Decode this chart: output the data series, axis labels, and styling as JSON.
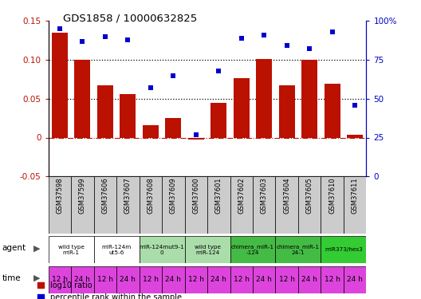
{
  "title": "GDS1858 / 10000632825",
  "samples": [
    "GSM37598",
    "GSM37599",
    "GSM37606",
    "GSM37607",
    "GSM37608",
    "GSM37609",
    "GSM37600",
    "GSM37601",
    "GSM37602",
    "GSM37603",
    "GSM37604",
    "GSM37605",
    "GSM37610",
    "GSM37611"
  ],
  "log10_ratio": [
    0.135,
    0.1,
    0.067,
    0.056,
    0.016,
    0.025,
    -0.003,
    0.045,
    0.076,
    0.101,
    0.067,
    0.1,
    0.069,
    0.004
  ],
  "percentile_rank": [
    95,
    87,
    90,
    88,
    57,
    65,
    27,
    68,
    89,
    91,
    84,
    82,
    93,
    46
  ],
  "ylim_left": [
    -0.05,
    0.15
  ],
  "ylim_right": [
    0,
    100
  ],
  "yticks_left": [
    -0.05,
    0.0,
    0.05,
    0.1,
    0.15
  ],
  "ytick_labels_left": [
    "-0.05",
    "0",
    "0.05",
    "0.10",
    "0.15"
  ],
  "yticks_right": [
    0,
    25,
    50,
    75,
    100
  ],
  "ytick_labels_right": [
    "0",
    "25",
    "50",
    "75",
    "100%"
  ],
  "hlines": [
    0.05,
    0.1
  ],
  "bar_color": "#bb1100",
  "dot_color": "#0000cc",
  "bar_width": 0.7,
  "agent_groups": [
    {
      "label": "wild type\nmiR-1",
      "start": 0,
      "end": 2,
      "color": "#ffffff"
    },
    {
      "label": "miR-124m\nut5-6",
      "start": 2,
      "end": 4,
      "color": "#ffffff"
    },
    {
      "label": "miR-124mut9-1\n0",
      "start": 4,
      "end": 6,
      "color": "#aaddaa"
    },
    {
      "label": "wild type\nmiR-124",
      "start": 6,
      "end": 8,
      "color": "#aaddaa"
    },
    {
      "label": "chimera_miR-1\n-124",
      "start": 8,
      "end": 10,
      "color": "#44bb44"
    },
    {
      "label": "chimera_miR-1\n24-1",
      "start": 10,
      "end": 12,
      "color": "#44bb44"
    },
    {
      "label": "miR373/hes3",
      "start": 12,
      "end": 14,
      "color": "#33cc33"
    }
  ],
  "time_labels": [
    "12 h",
    "24 h",
    "12 h",
    "24 h",
    "12 h",
    "24 h",
    "12 h",
    "24 h",
    "12 h",
    "24 h",
    "12 h",
    "24 h",
    "12 h",
    "24 h"
  ],
  "time_color": "#dd44dd",
  "legend_items": [
    {
      "label": "log10 ratio",
      "color": "#bb1100"
    },
    {
      "label": "percentile rank within the sample",
      "color": "#0000cc"
    }
  ]
}
